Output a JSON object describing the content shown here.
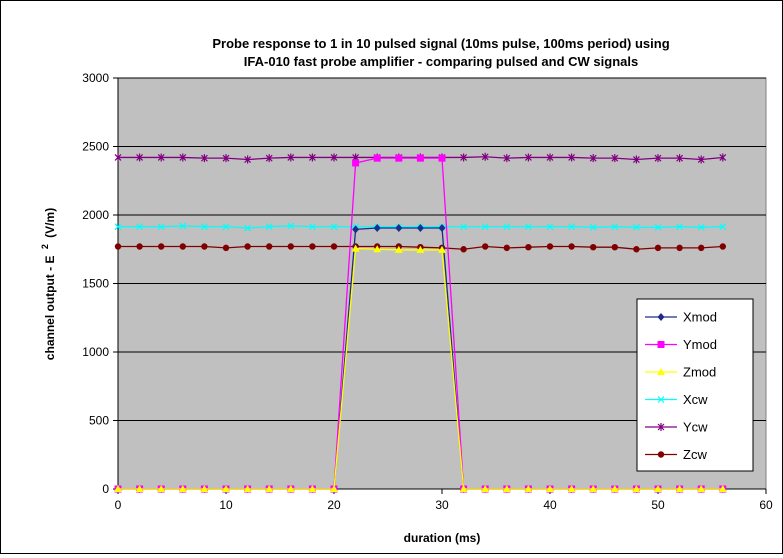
{
  "chart_data": {
    "type": "line",
    "title_lines": [
      "Probe response to 1 in 10 pulsed signal (10ms pulse, 100ms period) using",
      "IFA-010 fast probe amplifier - comparing pulsed and CW signals"
    ],
    "xlabel": "duration (ms)",
    "ylabel": "channel output - E",
    "ylabel_superscript": "2",
    "ylabel_unit": "(V/m)",
    "xlim": [
      0,
      60
    ],
    "ylim": [
      0,
      3000
    ],
    "x_ticks": [
      0,
      10,
      20,
      30,
      40,
      50,
      60
    ],
    "y_ticks": [
      0,
      500,
      1000,
      1500,
      2000,
      2500,
      3000
    ],
    "grid": "horizontal",
    "legend_position": "right",
    "x": [
      0,
      2,
      4,
      6,
      8,
      10,
      12,
      14,
      16,
      18,
      20,
      22,
      24,
      26,
      28,
      30,
      32,
      34,
      36,
      38,
      40,
      42,
      44,
      46,
      48,
      50,
      52,
      54,
      56
    ],
    "series": [
      {
        "name": "Xmod",
        "color": "#1f2a8c",
        "marker": "diamond",
        "values": [
          0,
          0,
          0,
          0,
          0,
          0,
          0,
          0,
          0,
          0,
          0,
          1895,
          1905,
          1905,
          1905,
          1905,
          0,
          0,
          0,
          0,
          0,
          0,
          0,
          0,
          0,
          0,
          0,
          0,
          0
        ]
      },
      {
        "name": "Ymod",
        "color": "#ff00ff",
        "marker": "square",
        "values": [
          0,
          0,
          0,
          0,
          0,
          0,
          0,
          0,
          0,
          0,
          0,
          2380,
          2415,
          2415,
          2415,
          2415,
          0,
          0,
          0,
          0,
          0,
          0,
          0,
          0,
          0,
          0,
          0,
          0,
          0
        ]
      },
      {
        "name": "Zmod",
        "color": "#ffff00",
        "marker": "triangle",
        "values": [
          0,
          0,
          0,
          0,
          0,
          0,
          0,
          0,
          0,
          0,
          0,
          1755,
          1750,
          1745,
          1745,
          1745,
          0,
          0,
          0,
          0,
          0,
          0,
          0,
          0,
          0,
          0,
          0,
          0,
          0
        ]
      },
      {
        "name": "Xcw",
        "color": "#00ffff",
        "marker": "x",
        "values": [
          1915,
          1915,
          1915,
          1920,
          1915,
          1915,
          1905,
          1915,
          1920,
          1915,
          1915,
          1915,
          1915,
          1915,
          1915,
          1915,
          1915,
          1915,
          1915,
          1915,
          1915,
          1915,
          1910,
          1915,
          1910,
          1910,
          1915,
          1910,
          1915
        ]
      },
      {
        "name": "Ycw",
        "color": "#800080",
        "marker": "star",
        "values": [
          2420,
          2420,
          2420,
          2420,
          2415,
          2415,
          2405,
          2415,
          2420,
          2420,
          2420,
          2420,
          2420,
          2420,
          2420,
          2420,
          2420,
          2425,
          2415,
          2420,
          2420,
          2420,
          2415,
          2415,
          2405,
          2415,
          2415,
          2405,
          2420
        ]
      },
      {
        "name": "Zcw",
        "color": "#800000",
        "marker": "circle",
        "values": [
          1770,
          1770,
          1770,
          1770,
          1770,
          1760,
          1770,
          1770,
          1770,
          1770,
          1770,
          1770,
          1770,
          1770,
          1765,
          1760,
          1750,
          1770,
          1760,
          1765,
          1770,
          1770,
          1765,
          1765,
          1750,
          1760,
          1760,
          1760,
          1770
        ]
      }
    ]
  }
}
